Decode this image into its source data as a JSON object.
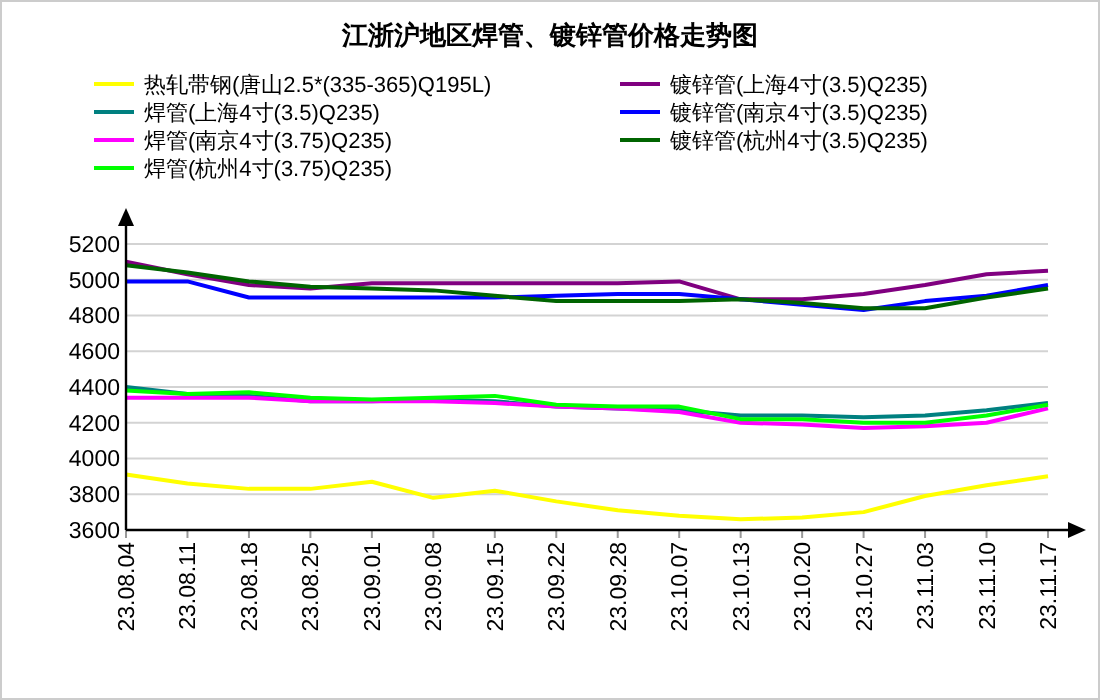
{
  "chart_data": {
    "type": "line",
    "title": "江浙沪地区焊管、镀锌管价格走势图",
    "categories": [
      "23.08.04",
      "23.08.11",
      "23.08.18",
      "23.08.25",
      "23.09.01",
      "23.09.08",
      "23.09.15",
      "23.09.22",
      "23.09.28",
      "23.10.07",
      "23.10.13",
      "23.10.20",
      "23.10.27",
      "23.11.03",
      "23.11.10",
      "23.11.17"
    ],
    "series": [
      {
        "name": "热轧带钢(唐山2.5*(335-365)Q195L)",
        "color": "#ffff00",
        "values": [
          3910,
          3860,
          3830,
          3830,
          3870,
          3780,
          3820,
          3760,
          3710,
          3680,
          3660,
          3670,
          3700,
          3790,
          3850,
          3900
        ]
      },
      {
        "name": "焊管(上海4寸(3.5)Q235)",
        "color": "#008080",
        "values": [
          4400,
          4360,
          4350,
          4320,
          4320,
          4330,
          4320,
          4290,
          4280,
          4270,
          4240,
          4240,
          4230,
          4240,
          4270,
          4310
        ]
      },
      {
        "name": "焊管(南京4寸(3.75)Q235)",
        "color": "#ff00ff",
        "values": [
          4340,
          4340,
          4340,
          4320,
          4320,
          4320,
          4310,
          4290,
          4280,
          4260,
          4200,
          4190,
          4170,
          4180,
          4200,
          4280
        ]
      },
      {
        "name": "焊管(杭州4寸(3.75)Q235)",
        "color": "#00ff00",
        "values": [
          4380,
          4360,
          4370,
          4340,
          4330,
          4340,
          4350,
          4300,
          4290,
          4290,
          4220,
          4220,
          4200,
          4200,
          4240,
          4300
        ]
      },
      {
        "name": "镀锌管(上海4寸(3.5)Q235)",
        "color": "#800080",
        "values": [
          5100,
          5030,
          4970,
          4950,
          4980,
          4980,
          4980,
          4980,
          4980,
          4990,
          4890,
          4890,
          4920,
          4970,
          5030,
          5050
        ]
      },
      {
        "name": "镀锌管(南京4寸(3.5)Q235)",
        "color": "#0000ff",
        "values": [
          4990,
          4990,
          4900,
          4900,
          4900,
          4900,
          4900,
          4910,
          4920,
          4920,
          4890,
          4860,
          4830,
          4880,
          4910,
          4970
        ]
      },
      {
        "name": "镀锌管(杭州4寸(3.5)Q235)",
        "color": "#006400",
        "values": [
          5080,
          5040,
          4990,
          4960,
          4950,
          4940,
          4910,
          4880,
          4880,
          4880,
          4890,
          4870,
          4840,
          4840,
          4900,
          4950
        ]
      }
    ],
    "ylim": [
      3600,
      5300
    ],
    "yticks": [
      3600,
      3800,
      4000,
      4200,
      4400,
      4600,
      4800,
      5000,
      5200
    ],
    "grid": "y",
    "legend": "top",
    "marker": "none",
    "line_style": "solid"
  }
}
